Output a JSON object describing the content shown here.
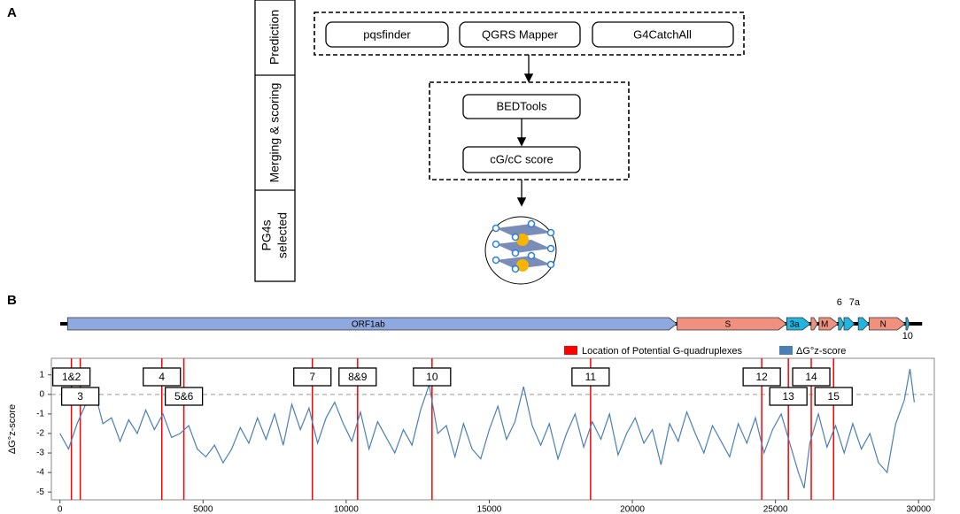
{
  "panel_a": {
    "label": "A",
    "stages": [
      [
        "Prediction"
      ],
      [
        "Merging & scoring"
      ],
      [
        "PG4s",
        "selected"
      ]
    ],
    "tools": [
      "pqsfinder",
      "QGRS Mapper",
      "G4CatchAll"
    ],
    "merge": "BEDTools",
    "score": "cG/cC score"
  },
  "chart_data": {
    "type": "line",
    "label": "B",
    "ylabel": "ΔG°z-score",
    "xlim": [
      -300,
      30550
    ],
    "ylim": [
      -5.4,
      1.85
    ],
    "xticks": [
      0,
      5000,
      10000,
      15000,
      20000,
      25000,
      30000
    ],
    "yticks": [
      1,
      0,
      -1,
      -2,
      -3,
      -4,
      -5
    ],
    "x": [
      0,
      300,
      600,
      900,
      1200,
      1500,
      1800,
      2100,
      2400,
      2700,
      3000,
      3300,
      3600,
      3900,
      4200,
      4500,
      4800,
      5100,
      5400,
      5700,
      6000,
      6300,
      6600,
      6900,
      7200,
      7500,
      7800,
      8100,
      8400,
      8700,
      9000,
      9300,
      9600,
      9900,
      10200,
      10500,
      10800,
      11100,
      11400,
      11700,
      12000,
      12300,
      12600,
      12900,
      13200,
      13500,
      13800,
      14100,
      14400,
      14700,
      15000,
      15300,
      15600,
      15900,
      16200,
      16500,
      16800,
      17100,
      17400,
      17700,
      18000,
      18300,
      18600,
      18900,
      19200,
      19500,
      19800,
      20100,
      20400,
      20700,
      21000,
      21300,
      21600,
      21900,
      22200,
      22500,
      22800,
      23100,
      23400,
      23700,
      24000,
      24300,
      24600,
      24900,
      25200,
      25500,
      25800,
      26000,
      26200,
      26500,
      26800,
      27100,
      27400,
      27700,
      28000,
      28300,
      28600,
      28900,
      29200,
      29500,
      29700,
      29850
    ],
    "series": [
      {
        "name": "ΔG°z-score",
        "color": "#4a7fb5",
        "values": [
          -2.0,
          -2.8,
          -1.5,
          -0.5,
          0.2,
          -1.5,
          -1.2,
          -2.4,
          -1.3,
          -2.0,
          -0.8,
          -1.8,
          -1.0,
          -2.2,
          -2.0,
          -1.6,
          -2.8,
          -3.2,
          -2.6,
          -3.5,
          -2.8,
          -1.7,
          -2.5,
          -1.2,
          -2.3,
          -1.0,
          -2.6,
          -0.5,
          -1.8,
          -0.7,
          -2.5,
          -1.2,
          -0.4,
          -1.5,
          -2.4,
          -0.9,
          -2.8,
          -1.4,
          -2.2,
          -3.0,
          -1.8,
          -2.6,
          -0.8,
          0.5,
          -2.0,
          -1.6,
          -3.2,
          -1.5,
          -2.8,
          -3.3,
          -1.8,
          -0.6,
          -2.3,
          -1.4,
          0.4,
          -1.6,
          -2.6,
          -1.5,
          -3.3,
          -2.0,
          -1.0,
          -2.7,
          -1.4,
          -2.3,
          -1.0,
          -3.1,
          -2.0,
          -1.2,
          -2.5,
          -1.8,
          -3.6,
          -1.5,
          -2.4,
          -0.9,
          -2.0,
          -3.0,
          -1.6,
          -2.4,
          -3.2,
          -1.5,
          -2.5,
          -1.2,
          -3.0,
          -1.8,
          -1.0,
          -2.5,
          -4.0,
          -4.8,
          -2.5,
          -1.0,
          -2.7,
          -1.6,
          -3.0,
          -1.5,
          -2.8,
          -2.0,
          -3.5,
          -4.0,
          -1.5,
          -0.3,
          1.3,
          -0.4
        ]
      }
    ],
    "pg4": {
      "name": "Location of Potential G-quadruplexes",
      "color": "#ff0000",
      "positions": [
        400,
        710,
        3560,
        4330,
        8820,
        10400,
        13000,
        18540,
        24520,
        25450,
        26250,
        27030
      ],
      "labels": [
        "1&2",
        "3",
        "4",
        "5&6",
        "7",
        "8&9",
        "10",
        "11",
        "12",
        "13",
        "14",
        "15"
      ]
    },
    "genes": [
      {
        "name": "ORF1ab",
        "start": 266,
        "end": 21555,
        "color": "#8fa8e0"
      },
      {
        "name": "S",
        "start": 21563,
        "end": 25384,
        "color": "#f0907e"
      },
      {
        "name": "3a",
        "start": 25393,
        "end": 26220,
        "color": "#21b6e0"
      },
      {
        "name": null,
        "start": 26245,
        "end": 26472,
        "color": "#f0907e"
      },
      {
        "name": "M",
        "start": 26523,
        "end": 27191,
        "color": "#f0907e"
      },
      {
        "name": "6",
        "start": 27202,
        "end": 27387,
        "color": "#21b6e0"
      },
      {
        "name": "7a",
        "start": 27394,
        "end": 27759,
        "color": "#21b6e0"
      },
      {
        "name": null,
        "start": 27894,
        "end": 28259,
        "color": "#21b6e0"
      },
      {
        "name": "N",
        "start": 28274,
        "end": 29533,
        "color": "#f0907e"
      },
      {
        "name": "10",
        "start": 29558,
        "end": 29674,
        "color": "#21b6e0"
      }
    ],
    "grid": false,
    "zero_line": true
  }
}
